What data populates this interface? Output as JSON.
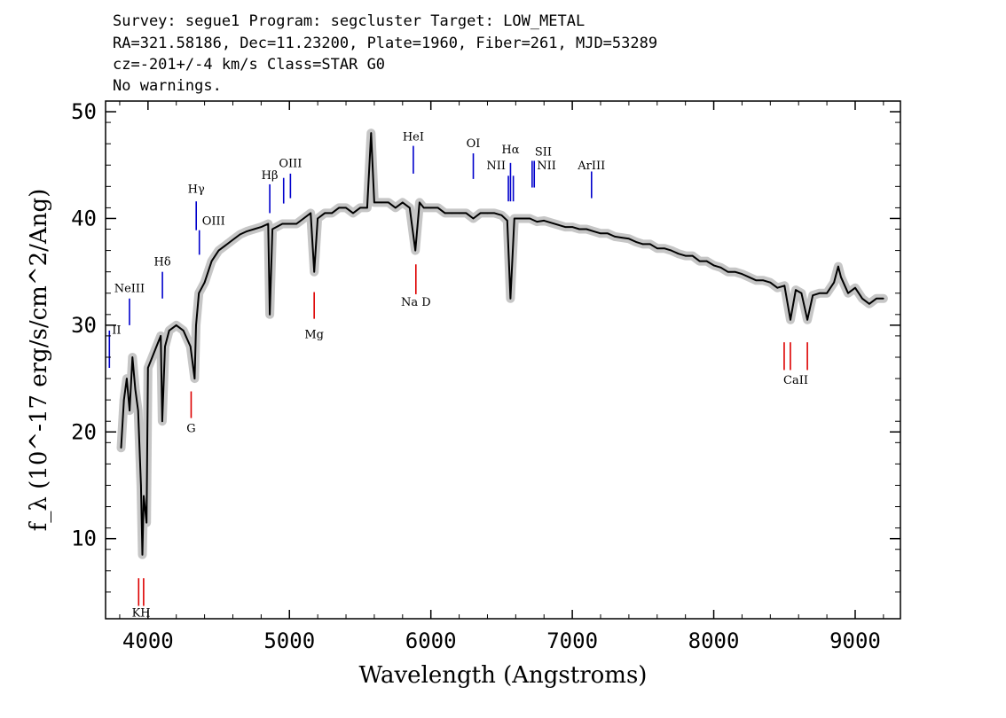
{
  "header": {
    "line1": "Survey: segue1 Program: segcluster Target: LOW_METAL",
    "line2": "RA=321.58186, Dec=11.23200, Plate=1960, Fiber=261, MJD=53289",
    "line3": "cz=-201+/-4 km/s Class=STAR G0",
    "line4": "No warnings."
  },
  "chart_data": {
    "type": "line",
    "xlabel": "Wavelength (Angstroms)",
    "ylabel": "f_λ (10^-17 erg/s/cm^2/Ang)",
    "xlim": [
      3700,
      9320
    ],
    "ylim": [
      2.5,
      51
    ],
    "xticks": [
      4000,
      5000,
      6000,
      7000,
      8000,
      9000
    ],
    "yticks": [
      10,
      20,
      30,
      40,
      50
    ],
    "grid": false,
    "colors": {
      "spectrum": "#000000",
      "error_band": "#c0c0c0",
      "emission": "#0000cc",
      "absorption": "#dd0000"
    },
    "series": [
      {
        "x": [
          3810,
          3830,
          3850,
          3870,
          3890,
          3910,
          3930,
          3950,
          3960,
          3970,
          3990,
          4000,
          4030,
          4060,
          4090,
          4101,
          4120,
          4150,
          4200,
          4250,
          4300,
          4330,
          4340,
          4360,
          4400,
          4450,
          4500,
          4550,
          4600,
          4650,
          4700,
          4750,
          4800,
          4850,
          4861,
          4880,
          4950,
          5000,
          5050,
          5100,
          5150,
          5175,
          5200,
          5250,
          5300,
          5350,
          5400,
          5450,
          5500,
          5550,
          5577,
          5600,
          5650,
          5700,
          5750,
          5800,
          5850,
          5890,
          5920,
          5950,
          6000,
          6050,
          6100,
          6150,
          6200,
          6250,
          6300,
          6350,
          6400,
          6450,
          6500,
          6540,
          6563,
          6590,
          6650,
          6700,
          6750,
          6800,
          6850,
          6900,
          6950,
          7000,
          7050,
          7100,
          7150,
          7200,
          7250,
          7300,
          7350,
          7400,
          7450,
          7500,
          7550,
          7600,
          7650,
          7700,
          7750,
          7800,
          7850,
          7900,
          7950,
          8000,
          8050,
          8100,
          8150,
          8200,
          8250,
          8300,
          8350,
          8400,
          8450,
          8500,
          8542,
          8580,
          8620,
          8662,
          8700,
          8750,
          8800,
          8850,
          8880,
          8900,
          8950,
          9000,
          9050,
          9100,
          9150,
          9200
        ],
        "y": [
          18.5,
          23,
          25,
          22,
          27,
          24,
          22,
          15,
          8.5,
          14,
          11.5,
          26,
          27,
          28,
          29,
          21,
          28,
          29.5,
          30,
          29.5,
          28,
          25,
          30,
          33,
          34,
          36,
          37,
          37.5,
          38,
          38.5,
          38.8,
          39,
          39.2,
          39.5,
          31,
          39,
          39.5,
          39.5,
          39.5,
          40,
          40.5,
          35,
          40,
          40.5,
          40.5,
          41,
          41,
          40.5,
          41,
          41,
          48,
          41.5,
          41.5,
          41.5,
          41,
          41.5,
          41,
          37,
          41.5,
          41,
          41,
          41,
          40.5,
          40.5,
          40.5,
          40.5,
          40,
          40.5,
          40.5,
          40.5,
          40.3,
          39.8,
          32.5,
          40,
          40,
          40,
          39.7,
          39.8,
          39.6,
          39.4,
          39.2,
          39.2,
          39,
          39,
          38.8,
          38.6,
          38.6,
          38.3,
          38.2,
          38.1,
          37.8,
          37.6,
          37.6,
          37.2,
          37.2,
          37,
          36.7,
          36.5,
          36.5,
          36,
          36,
          35.6,
          35.4,
          35,
          35,
          34.8,
          34.5,
          34.2,
          34.2,
          34,
          33.5,
          33.7,
          30.5,
          33.3,
          33,
          30.5,
          32.8,
          33,
          33,
          34,
          35.5,
          34.5,
          33,
          33.5,
          32.5,
          32,
          32.5,
          32.5
        ]
      }
    ],
    "emission_lines": [
      {
        "label": "II",
        "x": 3727,
        "y1": 26,
        "y2": 29.5,
        "label_y": 29.2,
        "anchor": "start"
      },
      {
        "label": "NeIII",
        "x": 3869,
        "y1": 30,
        "y2": 32.5,
        "label_y": 33.1,
        "anchor": "middle"
      },
      {
        "label": "Hδ",
        "x": 4102,
        "y1": 32.5,
        "y2": 35,
        "label_y": 35.6,
        "anchor": "middle"
      },
      {
        "label": "Hγ",
        "x": 4341,
        "y1": 38.9,
        "y2": 41.6,
        "label_y": 42.4,
        "anchor": "middle"
      },
      {
        "label": "OIII",
        "x": 4363,
        "y1": 36.6,
        "y2": 38.9,
        "label_y": 39.4,
        "anchor": "start"
      },
      {
        "label": "Hβ",
        "x": 4861,
        "y1": 40.5,
        "y2": 43.2,
        "label_y": 43.7,
        "anchor": "middle"
      },
      {
        "label": "",
        "x": 4959,
        "y1": 41.4,
        "y2": 43.8,
        "label_y": 0,
        "anchor": "middle"
      },
      {
        "label": "OIII",
        "x": 5007,
        "y1": 41.9,
        "y2": 44.2,
        "label_y": 44.8,
        "anchor": "middle"
      },
      {
        "label": "HeI",
        "x": 5876,
        "y1": 44.2,
        "y2": 46.8,
        "label_y": 47.3,
        "anchor": "middle"
      },
      {
        "label": "OI",
        "x": 6300,
        "y1": 43.7,
        "y2": 46.1,
        "label_y": 46.7,
        "anchor": "middle"
      },
      {
        "label": "NII",
        "x": 6548,
        "y1": 41.6,
        "y2": 44,
        "label_y": 44.6,
        "anchor": "end"
      },
      {
        "label": "Hα",
        "x": 6563,
        "y1": 41.6,
        "y2": 45.2,
        "label_y": 46.1,
        "anchor": "middle"
      },
      {
        "label": "",
        "x": 6583,
        "y1": 41.6,
        "y2": 44,
        "label_y": 0,
        "anchor": "middle"
      },
      {
        "label": "SII",
        "x": 6716,
        "y1": 42.9,
        "y2": 45.4,
        "label_y": 45.9,
        "anchor": "start"
      },
      {
        "label": "NII",
        "x": 6731,
        "y1": 42.9,
        "y2": 45.4,
        "label_y": 44.6,
        "anchor": "start"
      },
      {
        "label": "ArIII",
        "x": 7136,
        "y1": 41.9,
        "y2": 44.4,
        "label_y": 44.6,
        "anchor": "middle"
      }
    ],
    "absorption_lines": [
      {
        "label": "KH",
        "x": 3934,
        "x2": 3969,
        "y1": 3.7,
        "y2": 6.3,
        "label_y": 2.7
      },
      {
        "label": "G",
        "x": 4305,
        "y1": 21.3,
        "y2": 23.8,
        "label_y": 20
      },
      {
        "label": "Mg",
        "x": 5175,
        "y1": 30.6,
        "y2": 33.1,
        "label_y": 28.8
      },
      {
        "label": "Na D",
        "x": 5894,
        "y1": 32.9,
        "y2": 35.7,
        "label_y": 31.8
      },
      {
        "label": "CaII",
        "x": 8498,
        "x2": 8542,
        "x3": 8662,
        "y1": 25.8,
        "y2": 28.4,
        "label_y": 24.5
      }
    ]
  }
}
